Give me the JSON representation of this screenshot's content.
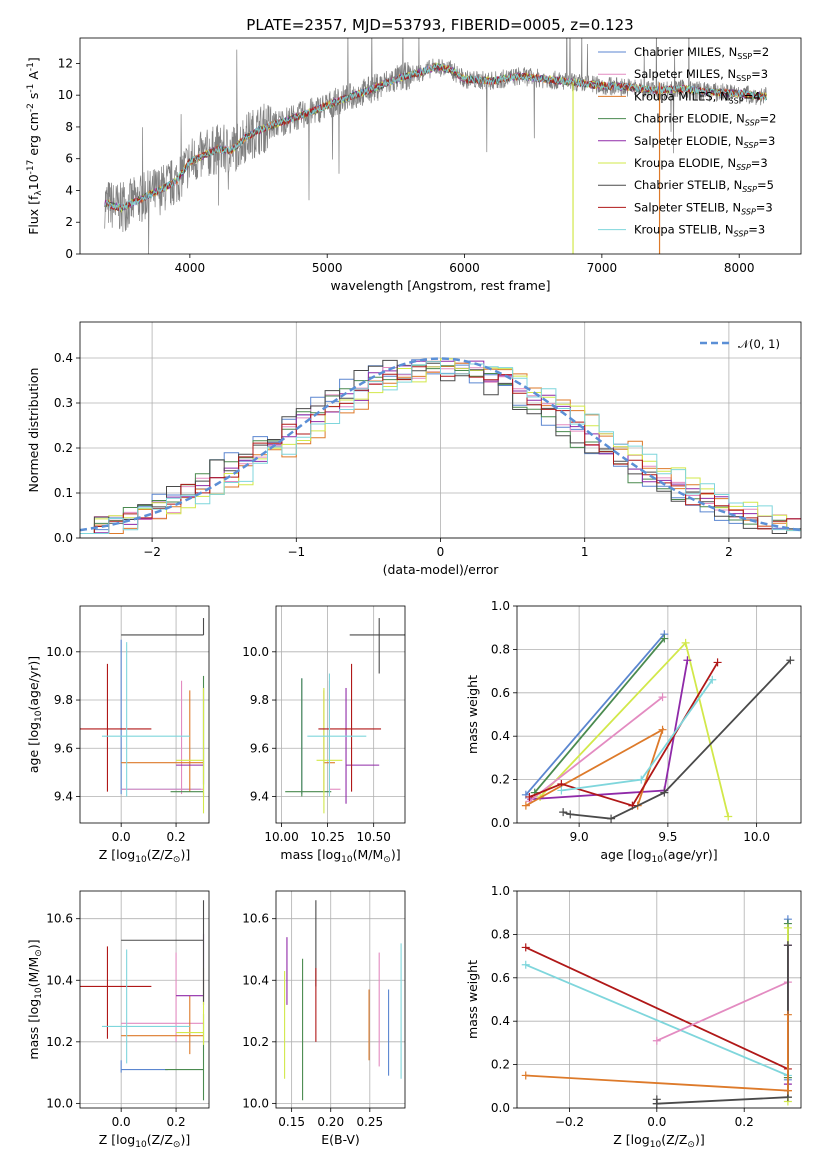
{
  "figure": {
    "title": "PLATE=2357, MJD=53793, FIBERID=0005, z=0.123"
  },
  "colors": {
    "chabrier_miles": "#5b86d0",
    "salpeter_miles": "#e38bc1",
    "kroupa_miles": "#dd7a2a",
    "chabrier_elodie": "#4a8a4f",
    "salpeter_elodie": "#8f2aa8",
    "kroupa_elodie": "#d2e84a",
    "chabrier_stelib": "#4a4a4a",
    "salpeter_stelib": "#b01818",
    "kroupa_stelib": "#7fd6dc",
    "data": "#808080",
    "gaussian": "#5b8fd6"
  },
  "chart_data": [
    {
      "id": "spectrum",
      "type": "line",
      "xlabel": "wavelength [Angstrom, rest frame]",
      "ylabel": "Flux [f$_\\lambda$10$^{-17}$ erg cm$^{-2}$ s$^{-1}$ A$^{-1}$]",
      "xlim": [
        3200,
        8450
      ],
      "ylim": [
        0,
        13.6
      ],
      "xticks": [
        4000,
        5000,
        6000,
        7000,
        8000
      ],
      "yticks": [
        0,
        2,
        4,
        6,
        8,
        10,
        12
      ],
      "grid": false,
      "legend_position": "right",
      "legend": [
        {
          "label": "Chabrier MILES, N",
          "sub": "SSP",
          "suffix": "=2",
          "color_key": "chabrier_miles"
        },
        {
          "label": "Salpeter MILES, N",
          "sub": "SSP",
          "suffix": "=3",
          "color_key": "salpeter_miles"
        },
        {
          "label": "Kroupa MILES, N",
          "sub": "SSP",
          "suffix": "=4",
          "color_key": "kroupa_miles"
        },
        {
          "label": "Chabrier ELODIE, N",
          "sub": "SSP",
          "suffix": "=2",
          "color_key": "chabrier_elodie"
        },
        {
          "label": "Salpeter ELODIE, N",
          "sub": "SSP",
          "suffix": "=3",
          "color_key": "salpeter_elodie"
        },
        {
          "label": "Kroupa ELODIE, N",
          "sub": "SSP",
          "suffix": "=3",
          "color_key": "kroupa_elodie"
        },
        {
          "label": "Chabrier STELIB, N",
          "sub": "SSP",
          "suffix": "=5",
          "color_key": "chabrier_stelib"
        },
        {
          "label": "Salpeter STELIB, N",
          "sub": "SSP",
          "suffix": "=3",
          "color_key": "salpeter_stelib"
        },
        {
          "label": "Kroupa STELIB, N",
          "sub": "SSP",
          "suffix": "=3",
          "color_key": "kroupa_stelib"
        }
      ],
      "model_continuum": {
        "x": [
          3400,
          3450,
          3500,
          3600,
          3700,
          3800,
          3900,
          4000,
          4100,
          4200,
          4300,
          4400,
          4500,
          4700,
          4900,
          5100,
          5300,
          5500,
          5700,
          5800,
          5900,
          6000,
          6200,
          6400,
          6600,
          6800,
          7000,
          7200,
          7400,
          7600,
          7800,
          8000,
          8200
        ],
        "y": [
          3.2,
          3.0,
          2.9,
          3.3,
          3.7,
          4.1,
          4.6,
          5.8,
          6.2,
          6.6,
          6.5,
          7.3,
          7.8,
          8.4,
          9.0,
          9.7,
          10.3,
          11.0,
          11.5,
          11.8,
          11.6,
          11.0,
          10.9,
          11.2,
          11.0,
          10.8,
          10.6,
          10.5,
          10.3,
          10.4,
          10.2,
          10.1,
          9.9
        ]
      },
      "vertical_features": [
        {
          "x": 6790,
          "color_key": "kroupa_elodie"
        },
        {
          "x": 7420,
          "color_key": "kroupa_miles"
        }
      ]
    },
    {
      "id": "residuals",
      "type": "histogram",
      "xlabel": "(data-model)/error",
      "ylabel": "Normed distribution",
      "xlim": [
        -2.5,
        2.5
      ],
      "ylim": [
        0,
        0.48
      ],
      "xticks": [
        -2,
        -1,
        0,
        1,
        2
      ],
      "yticks": [
        0.0,
        0.1,
        0.2,
        0.3,
        0.4
      ],
      "grid": true,
      "legend_position": "top-right",
      "legend": [
        {
          "label": "𝒩(0, 1)",
          "color_key": "gaussian",
          "style": "dashed"
        }
      ],
      "bin_width": 0.1,
      "gaussian": {
        "mean": 0,
        "sigma": 1
      }
    },
    {
      "id": "age_vs_Z",
      "type": "errorbar",
      "xlabel": "Z [log$_{10}$(Z/Z$_\\odot$)]",
      "ylabel": "age  [log$_{10}$(age/yr)]",
      "xlim": [
        -0.15,
        0.32
      ],
      "ylim": [
        9.29,
        10.19
      ],
      "xticks": [
        0.0,
        0.2
      ],
      "yticks": [
        9.4,
        9.6,
        9.8,
        10.0
      ],
      "grid": true,
      "points": [
        {
          "color_key": "chabrier_miles",
          "x": 0.0,
          "y": 9.43,
          "xerr": [
            0.0,
            0.29
          ],
          "yerr": [
            0.02,
            0.62
          ]
        },
        {
          "color_key": "salpeter_miles",
          "x": 0.22,
          "y": 9.43,
          "xerr": [
            0.22,
            0.08
          ],
          "yerr": [
            0.02,
            0.45
          ]
        },
        {
          "color_key": "kroupa_miles",
          "x": 0.25,
          "y": 9.54,
          "xerr": [
            0.25,
            0.05
          ],
          "yerr": [
            0.12,
            0.3
          ]
        },
        {
          "color_key": "chabrier_elodie",
          "x": 0.3,
          "y": 9.42,
          "xerr": [
            0.12,
            0.0
          ],
          "yerr": [
            0.02,
            0.48
          ]
        },
        {
          "color_key": "salpeter_elodie",
          "x": 0.3,
          "y": 9.53,
          "xerr": [
            0.1,
            0.0
          ],
          "yerr": [
            0.08,
            0.32
          ]
        },
        {
          "color_key": "kroupa_elodie",
          "x": 0.3,
          "y": 9.55,
          "xerr": [
            0.1,
            0.0
          ],
          "yerr": [
            0.22,
            0.3
          ]
        },
        {
          "color_key": "chabrier_stelib",
          "x": 0.3,
          "y": 10.07,
          "xerr": [
            0.3,
            0.0
          ],
          "yerr": [
            0.0,
            0.07
          ]
        },
        {
          "color_key": "salpeter_stelib",
          "x": -0.05,
          "y": 9.68,
          "xerr": [
            0.11,
            0.16
          ],
          "yerr": [
            0.26,
            0.27
          ]
        },
        {
          "color_key": "kroupa_stelib",
          "x": 0.02,
          "y": 9.65,
          "xerr": [
            0.09,
            0.23
          ],
          "yerr": [
            0.25,
            0.39
          ]
        }
      ]
    },
    {
      "id": "age_vs_mass",
      "type": "errorbar",
      "xlabel": "mass [log$_{10}$(M/M$_\\odot$)]",
      "ylabel": "",
      "xlim": [
        9.97,
        10.67
      ],
      "ylim": [
        9.29,
        10.19
      ],
      "xticks": [
        10.0,
        10.25,
        10.5
      ],
      "yticks": [
        9.4,
        9.6,
        9.8,
        10.0
      ],
      "grid": true,
      "points": [
        {
          "color_key": "chabrier_miles",
          "x": 10.11,
          "y": 9.43,
          "xerr": [
            0.0,
            0.0
          ],
          "yerr": [
            0.02,
            0.46
          ]
        },
        {
          "color_key": "salpeter_miles",
          "x": 10.26,
          "y": 9.43,
          "xerr": [
            0.0,
            0.06
          ],
          "yerr": [
            0.02,
            0.45
          ]
        },
        {
          "color_key": "kroupa_miles",
          "x": 10.23,
          "y": 9.54,
          "xerr": [
            0.0,
            0.06
          ],
          "yerr": [
            0.12,
            0.3
          ]
        },
        {
          "color_key": "chabrier_elodie",
          "x": 10.11,
          "y": 9.42,
          "xerr": [
            0.09,
            0.16
          ],
          "yerr": [
            0.02,
            0.47
          ]
        },
        {
          "color_key": "salpeter_elodie",
          "x": 10.35,
          "y": 9.53,
          "xerr": [
            0.0,
            0.18
          ],
          "yerr": [
            0.16,
            0.32
          ]
        },
        {
          "color_key": "kroupa_elodie",
          "x": 10.23,
          "y": 9.55,
          "xerr": [
            0.04,
            0.1
          ],
          "yerr": [
            0.22,
            0.3
          ]
        },
        {
          "color_key": "chabrier_stelib",
          "x": 10.53,
          "y": 10.07,
          "xerr": [
            0.16,
            0.17
          ],
          "yerr": [
            0.16,
            0.07
          ]
        },
        {
          "color_key": "salpeter_stelib",
          "x": 10.38,
          "y": 9.68,
          "xerr": [
            0.18,
            0.16
          ],
          "yerr": [
            0.26,
            0.27
          ]
        },
        {
          "color_key": "kroupa_stelib",
          "x": 10.26,
          "y": 9.65,
          "xerr": [
            0.12,
            0.2
          ],
          "yerr": [
            0.25,
            0.26
          ]
        }
      ]
    },
    {
      "id": "weights_vs_age",
      "type": "line",
      "xlabel": "age  [log$_{10}$(age/yr)]",
      "ylabel": "mass weight",
      "xlim": [
        8.65,
        10.25
      ],
      "ylim": [
        0,
        1.0
      ],
      "xticks": [
        9.0,
        9.5,
        10.0
      ],
      "yticks": [
        0.0,
        0.2,
        0.4,
        0.6,
        0.8,
        1.0
      ],
      "grid": true,
      "series": [
        {
          "color_key": "chabrier_miles",
          "x": [
            8.7,
            9.48
          ],
          "y": [
            0.13,
            0.87
          ]
        },
        {
          "color_key": "chabrier_elodie",
          "x": [
            8.75,
            9.48
          ],
          "y": [
            0.14,
            0.85
          ]
        },
        {
          "color_key": "kroupa_elodie",
          "x": [
            8.78,
            9.6,
            9.84
          ],
          "y": [
            0.12,
            0.83,
            0.03
          ]
        },
        {
          "color_key": "salpeter_elodie",
          "x": [
            8.73,
            9.48,
            9.61
          ],
          "y": [
            0.11,
            0.15,
            0.75
          ]
        },
        {
          "color_key": "salpeter_miles",
          "x": [
            8.72,
            9.47
          ],
          "y": [
            0.1,
            0.58
          ]
        },
        {
          "color_key": "kroupa_miles",
          "x": [
            8.7,
            9.47,
            9.33
          ],
          "y": [
            0.08,
            0.43,
            0.08
          ]
        },
        {
          "color_key": "salpeter_stelib",
          "x": [
            8.72,
            8.9,
            9.3,
            9.78
          ],
          "y": [
            0.12,
            0.18,
            0.08,
            0.74
          ]
        },
        {
          "color_key": "kroupa_stelib",
          "x": [
            8.9,
            9.35,
            9.75
          ],
          "y": [
            0.15,
            0.2,
            0.66
          ]
        },
        {
          "color_key": "chabrier_stelib",
          "x": [
            8.91,
            8.95,
            9.18,
            9.48,
            10.19
          ],
          "y": [
            0.05,
            0.04,
            0.02,
            0.14,
            0.75
          ]
        }
      ]
    },
    {
      "id": "mass_vs_Z",
      "type": "errorbar",
      "xlabel": "Z [log$_{10}$(Z/Z$_\\odot$)]",
      "ylabel": "mass [log$_{10}$(M/M$_\\odot$)]",
      "xlim": [
        -0.15,
        0.32
      ],
      "ylim": [
        9.985,
        10.69
      ],
      "xticks": [
        0.0,
        0.2
      ],
      "yticks": [
        10.0,
        10.2,
        10.4,
        10.6
      ],
      "grid": true,
      "points": [
        {
          "color_key": "chabrier_miles",
          "x": 0.0,
          "y": 10.11,
          "xerr": [
            0.0,
            0.17
          ],
          "yerr": [
            0.01,
            0.03
          ]
        },
        {
          "color_key": "salpeter_miles",
          "x": 0.2,
          "y": 10.26,
          "xerr": [
            0.2,
            0.1
          ],
          "yerr": [
            0.06,
            0.23
          ]
        },
        {
          "color_key": "kroupa_miles",
          "x": 0.25,
          "y": 10.22,
          "xerr": [
            0.25,
            0.05
          ],
          "yerr": [
            0.06,
            0.13
          ]
        },
        {
          "color_key": "chabrier_elodie",
          "x": 0.3,
          "y": 10.11,
          "xerr": [
            0.14,
            0.0
          ],
          "yerr": [
            0.1,
            0.18
          ]
        },
        {
          "color_key": "salpeter_elodie",
          "x": 0.3,
          "y": 10.35,
          "xerr": [
            0.1,
            0.0
          ],
          "yerr": [
            0.03,
            0.2
          ]
        },
        {
          "color_key": "kroupa_elodie",
          "x": 0.3,
          "y": 10.23,
          "xerr": [
            0.1,
            0.0
          ],
          "yerr": [
            0.04,
            0.21
          ]
        },
        {
          "color_key": "chabrier_stelib",
          "x": 0.3,
          "y": 10.53,
          "xerr": [
            0.3,
            0.0
          ],
          "yerr": [
            0.2,
            0.13
          ]
        },
        {
          "color_key": "salpeter_stelib",
          "x": -0.05,
          "y": 10.38,
          "xerr": [
            0.11,
            0.16
          ],
          "yerr": [
            0.17,
            0.13
          ]
        },
        {
          "color_key": "kroupa_stelib",
          "x": 0.02,
          "y": 10.25,
          "xerr": [
            0.09,
            0.23
          ],
          "yerr": [
            0.12,
            0.25
          ]
        }
      ]
    },
    {
      "id": "mass_vs_ebv",
      "type": "errorbar",
      "xlabel": "E(B-V)",
      "ylabel": "",
      "xlim": [
        0.13,
        0.295
      ],
      "ylim": [
        9.985,
        10.69
      ],
      "xticks": [
        0.15,
        0.2,
        0.25
      ],
      "yticks": [
        10.0,
        10.2,
        10.4,
        10.6
      ],
      "grid": true,
      "points": [
        {
          "color_key": "chabrier_miles",
          "x": 0.274,
          "y": 10.24,
          "xerr": [
            0,
            0
          ],
          "yerr": [
            0.15,
            0.13
          ]
        },
        {
          "color_key": "salpeter_miles",
          "x": 0.262,
          "y": 10.3,
          "xerr": [
            0,
            0
          ],
          "yerr": [
            0.18,
            0.19
          ]
        },
        {
          "color_key": "kroupa_miles",
          "x": 0.249,
          "y": 10.2,
          "xerr": [
            0,
            0
          ],
          "yerr": [
            0.06,
            0.17
          ]
        },
        {
          "color_key": "chabrier_elodie",
          "x": 0.164,
          "y": 10.2,
          "xerr": [
            0,
            0
          ],
          "yerr": [
            0.19,
            0.27
          ]
        },
        {
          "color_key": "salpeter_elodie",
          "x": 0.144,
          "y": 10.4,
          "xerr": [
            0,
            0
          ],
          "yerr": [
            0.08,
            0.14
          ]
        },
        {
          "color_key": "kroupa_elodie",
          "x": 0.141,
          "y": 10.26,
          "xerr": [
            0,
            0
          ],
          "yerr": [
            0.18,
            0.17
          ]
        },
        {
          "color_key": "chabrier_stelib",
          "x": 0.181,
          "y": 10.5,
          "xerr": [
            0,
            0
          ],
          "yerr": [
            0.12,
            0.16
          ]
        },
        {
          "color_key": "salpeter_stelib",
          "x": 0.181,
          "y": 10.32,
          "xerr": [
            0,
            0
          ],
          "yerr": [
            0.12,
            0.12
          ]
        },
        {
          "color_key": "kroupa_stelib",
          "x": 0.29,
          "y": 10.3,
          "xerr": [
            0,
            0
          ],
          "yerr": [
            0.22,
            0.22
          ]
        }
      ]
    },
    {
      "id": "weights_vs_Z",
      "type": "line",
      "xlabel": "Z [log$_{10}$(Z/Z$_\\odot$)]",
      "ylabel": "mass weight",
      "xlim": [
        -0.32,
        0.33
      ],
      "ylim": [
        0,
        1.0
      ],
      "xticks": [
        -0.2,
        0.0,
        0.2
      ],
      "yticks": [
        0.0,
        0.2,
        0.4,
        0.6,
        0.8,
        1.0
      ],
      "grid": true,
      "series": [
        {
          "color_key": "salpeter_stelib",
          "x": [
            -0.3,
            0.3
          ],
          "y": [
            0.74,
            0.18
          ]
        },
        {
          "color_key": "kroupa_stelib",
          "x": [
            -0.3,
            0.3
          ],
          "y": [
            0.66,
            0.15
          ]
        },
        {
          "color_key": "salpeter_miles",
          "x": [
            0.0,
            0.3
          ],
          "y": [
            0.31,
            0.58
          ]
        },
        {
          "color_key": "kroupa_miles",
          "x": [
            -0.3,
            0.3
          ],
          "y": [
            0.15,
            0.08
          ]
        },
        {
          "color_key": "chabrier_stelib",
          "x": [
            0.0,
            0.3
          ],
          "y": [
            0.02,
            0.05
          ]
        },
        {
          "color_key": "chabrier_stelib",
          "x": [
            0.0,
            0.0
          ],
          "y": [
            0.02,
            0.04
          ]
        },
        {
          "color_key": "chabrier_miles",
          "x": [
            0.3,
            0.3
          ],
          "y": [
            0.13,
            0.87
          ]
        },
        {
          "color_key": "chabrier_elodie",
          "x": [
            0.3,
            0.3
          ],
          "y": [
            0.14,
            0.85
          ]
        },
        {
          "color_key": "kroupa_elodie",
          "x": [
            0.3,
            0.3
          ],
          "y": [
            0.03,
            0.83
          ]
        },
        {
          "color_key": "salpeter_elodie",
          "x": [
            0.3,
            0.3
          ],
          "y": [
            0.11,
            0.75
          ]
        },
        {
          "color_key": "chabrier_stelib",
          "x": [
            0.3,
            0.3
          ],
          "y": [
            0.05,
            0.75
          ]
        },
        {
          "color_key": "kroupa_miles",
          "x": [
            0.3,
            0.3
          ],
          "y": [
            0.08,
            0.43
          ]
        }
      ]
    }
  ]
}
